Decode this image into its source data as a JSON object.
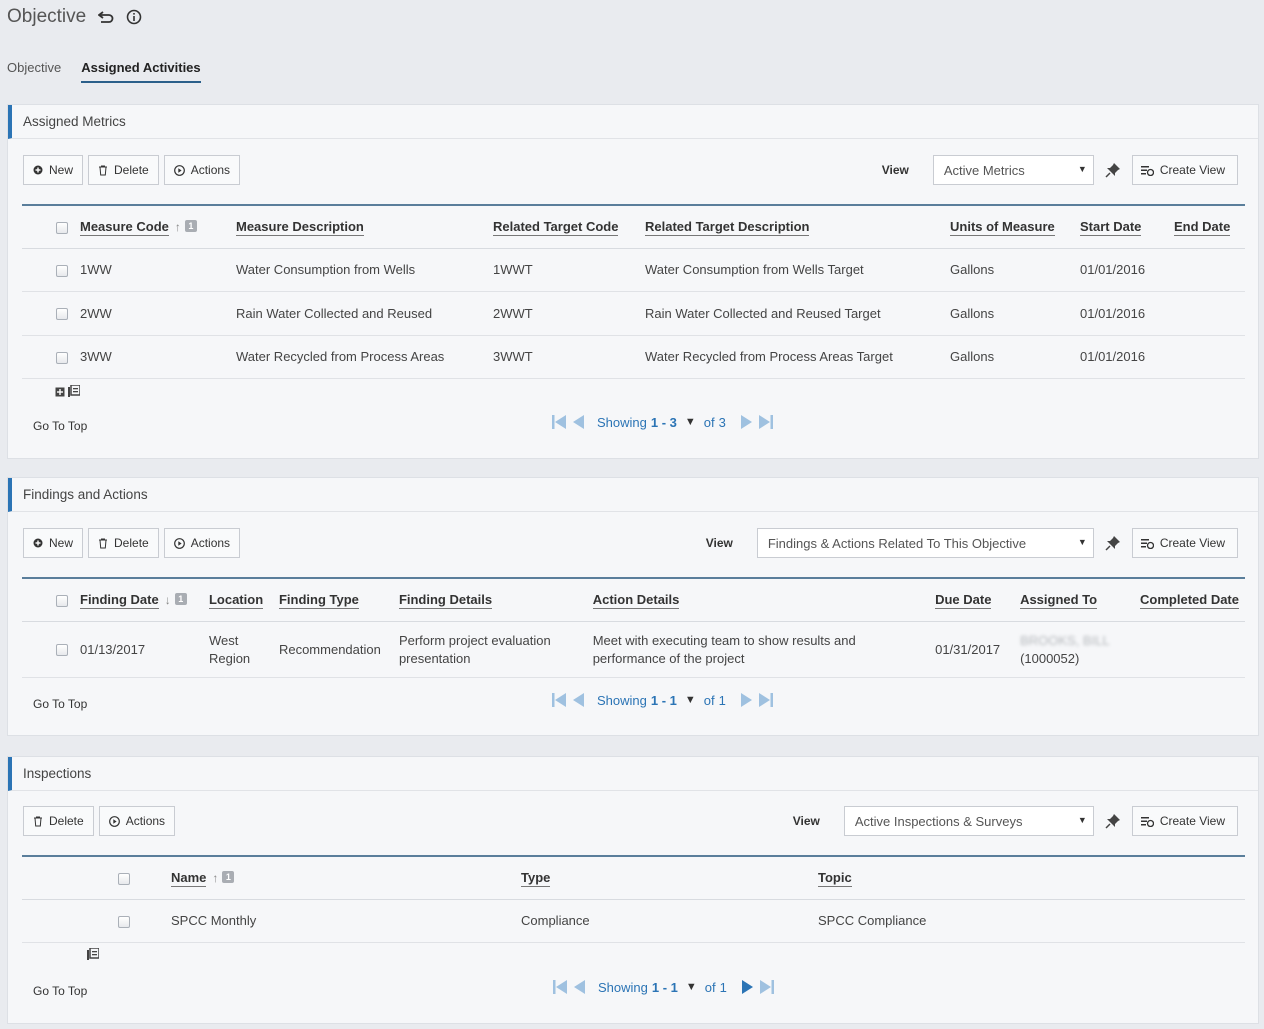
{
  "header": {
    "title": "Objective"
  },
  "tabs": [
    {
      "label": "Objective"
    },
    {
      "label": "Assigned Activities"
    }
  ],
  "common": {
    "new": "New",
    "delete": "Delete",
    "actions": "Actions",
    "view": "View",
    "create_view": "Create View",
    "go_to_top": "Go To Top",
    "showing": "Showing",
    "of": "of"
  },
  "metrics": {
    "title": "Assigned Metrics",
    "view_value": "Active Metrics",
    "columns": [
      "Measure Code",
      "Measure Description",
      "Related Target Code",
      "Related Target Description",
      "Units of Measure",
      "Start Date",
      "End Date"
    ],
    "sort_index": "1",
    "rows": [
      {
        "code": "1WW",
        "desc": "Water Consumption from Wells",
        "tcode": "1WWT",
        "tdesc": "Water Consumption from Wells Target",
        "unit": "Gallons",
        "start": "01/01/2016",
        "end": ""
      },
      {
        "code": "2WW",
        "desc": "Rain Water Collected and Reused",
        "tcode": "2WWT",
        "tdesc": "Rain Water Collected and Reused Target",
        "unit": "Gallons",
        "start": "01/01/2016",
        "end": ""
      },
      {
        "code": "3WW",
        "desc": "Water Recycled from Process Areas",
        "tcode": "3WWT",
        "tdesc": "Water Recycled from Process Areas Target",
        "unit": "Gallons",
        "start": "01/01/2016",
        "end": ""
      }
    ],
    "range": "1 - 3",
    "total": "3"
  },
  "findings": {
    "title": "Findings and Actions",
    "view_value": "Findings & Actions Related To This Objective",
    "columns": [
      "Finding Date",
      "Location",
      "Finding Type",
      "Finding Details",
      "Action Details",
      "Due Date",
      "Assigned To",
      "Completed Date"
    ],
    "sort_index": "1",
    "rows": [
      {
        "date": "01/13/2017",
        "location_1": "West",
        "location_2": "Region",
        "type": "Recommendation",
        "details_1": "Perform project evaluation",
        "details_2": "presentation",
        "action_1": "Meet with executing team to show results and",
        "action_2": "performance of the project",
        "due": "01/31/2017",
        "assigned_blur": "BROOKS, BILL",
        "assigned_id": "(1000052)",
        "completed": ""
      }
    ],
    "range": "1 - 1",
    "total": "1"
  },
  "inspections": {
    "title": "Inspections",
    "view_value": "Active Inspections & Surveys",
    "columns": [
      "Name",
      "Type",
      "Topic"
    ],
    "sort_index": "1",
    "rows": [
      {
        "name": "SPCC Monthly",
        "type": "Compliance",
        "topic": "SPCC Compliance"
      }
    ],
    "range": "1 - 1",
    "total": "1"
  }
}
